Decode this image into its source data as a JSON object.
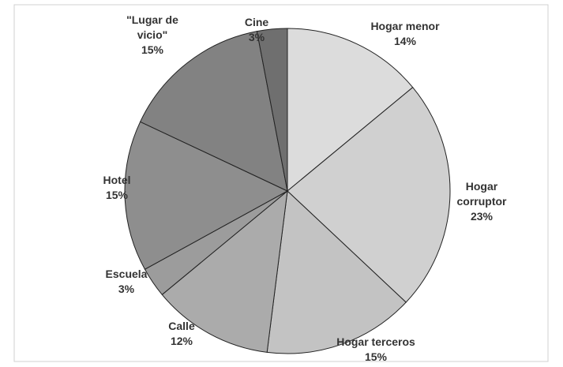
{
  "chart_data": {
    "type": "pie",
    "categories": [
      "Hogar menor",
      "Hogar corruptor",
      "Hogar terceros",
      "Calle",
      "Escuela",
      "Hotel",
      "\"Lugar de vicio\"",
      "Cine"
    ],
    "values": [
      14,
      23,
      15,
      12,
      3,
      15,
      15,
      3
    ],
    "value_labels": [
      "14%",
      "23%",
      "15%",
      "12%",
      "3%",
      "15%",
      "15%",
      "3%"
    ],
    "colors": [
      "#dcdcdc",
      "#d0d0d0",
      "#c3c3c3",
      "#ababab",
      "#9c9c9c",
      "#8e8e8e",
      "#828282",
      "#6f6f6f"
    ]
  }
}
